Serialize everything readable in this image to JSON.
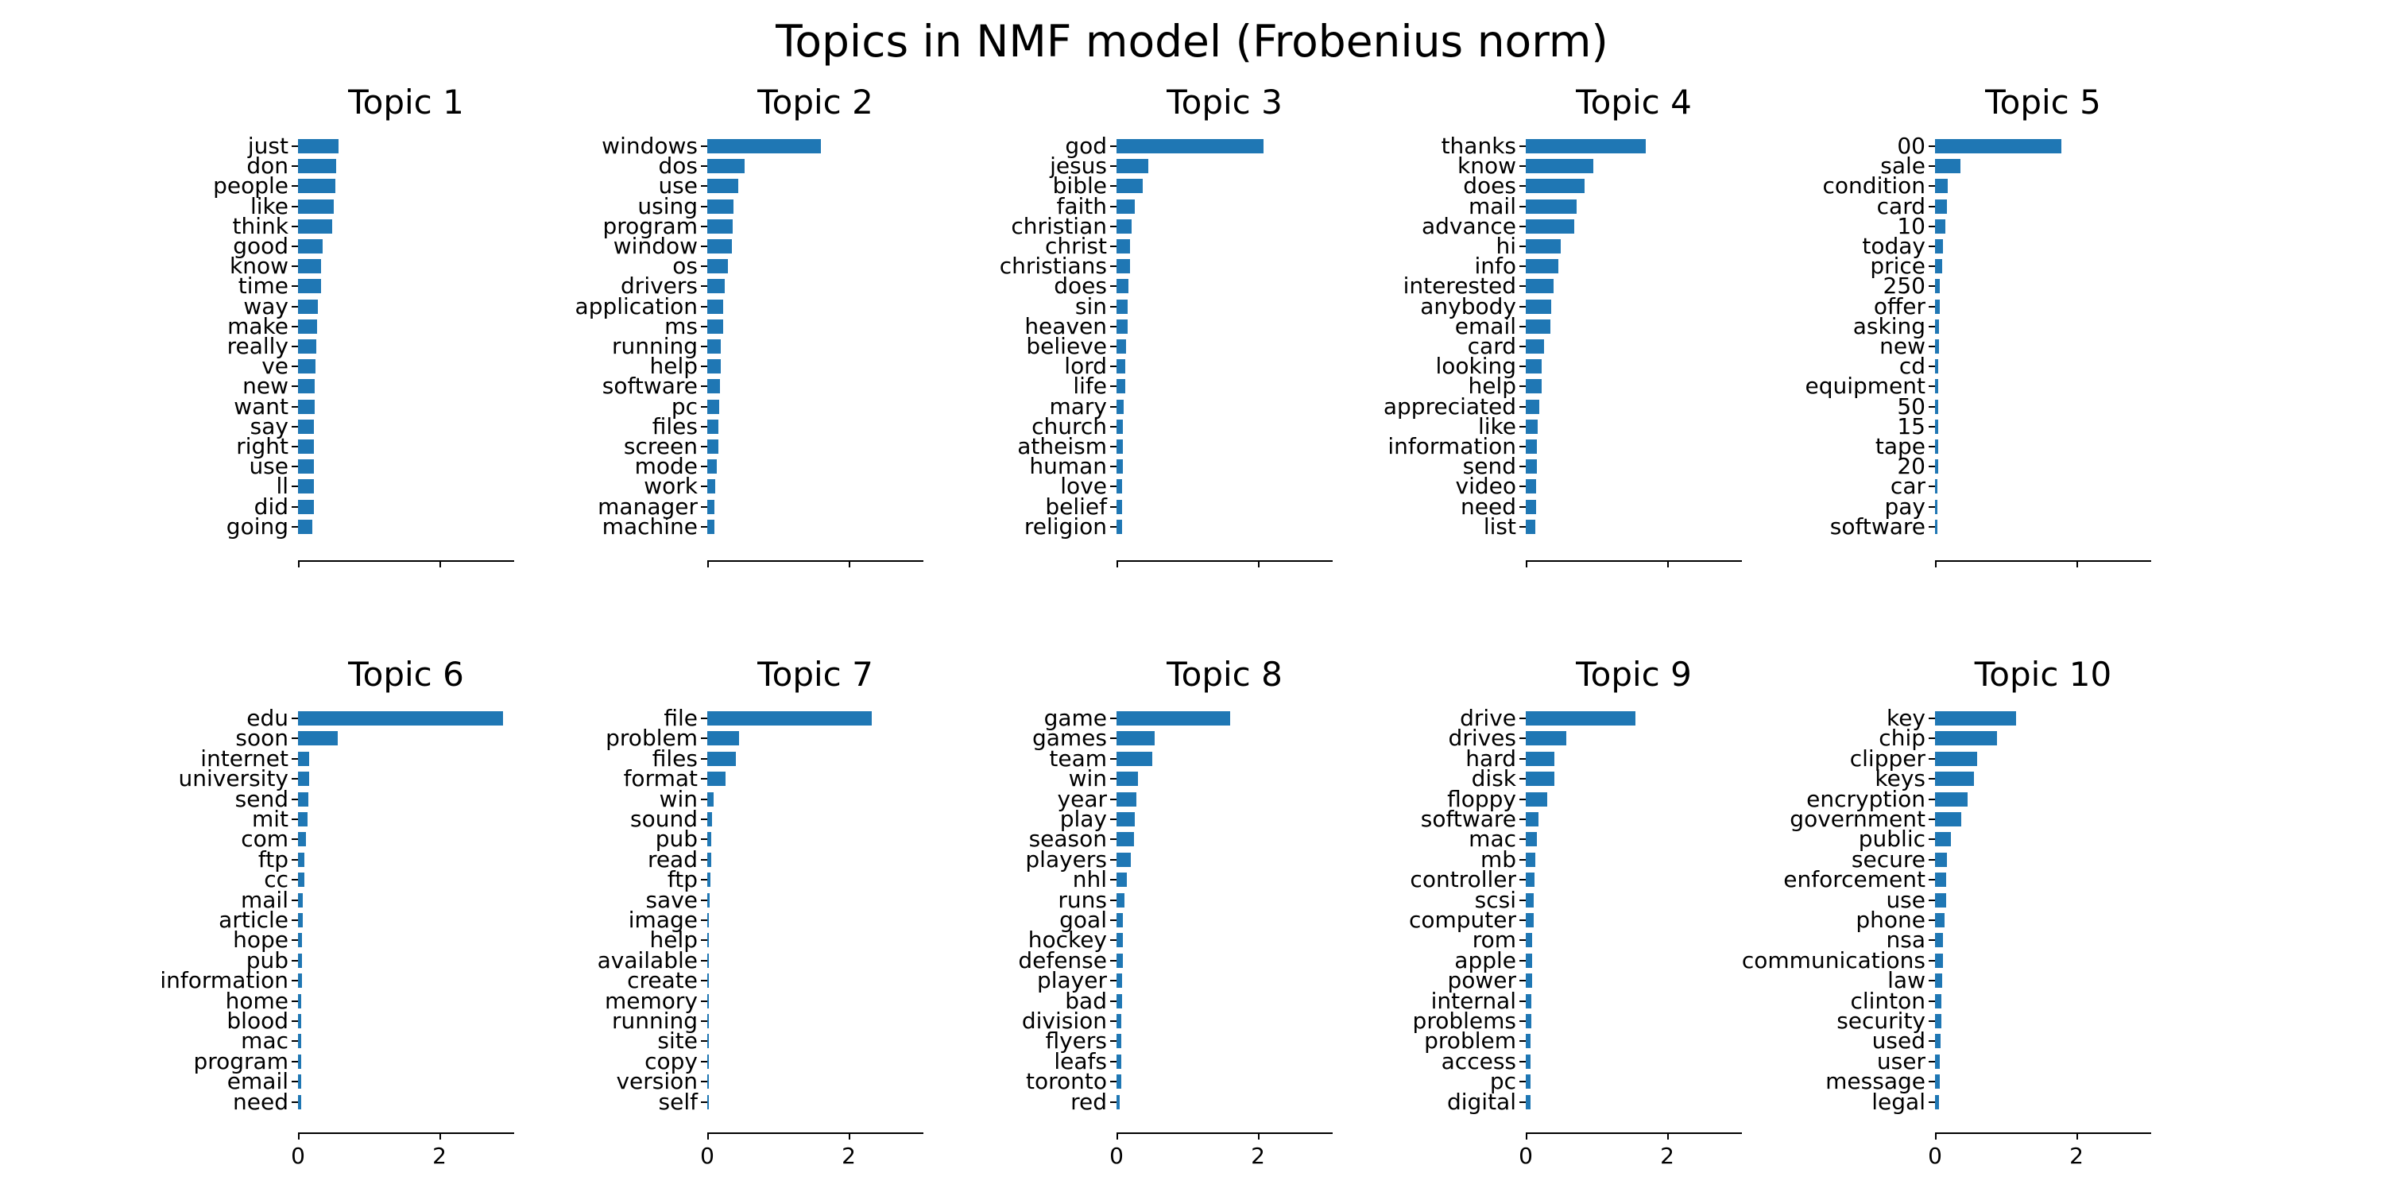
{
  "title": "Topics in NMF model (Frobenius norm)",
  "bar_color": "#1f77b4",
  "x_tick_labels": [
    "0",
    "2"
  ],
  "chart_data": [
    {
      "type": "bar",
      "orientation": "horizontal",
      "title": "Topic 1",
      "xlim": [
        0,
        3.05
      ],
      "xticks": [
        0,
        2
      ],
      "categories": [
        "just",
        "don",
        "people",
        "like",
        "think",
        "good",
        "know",
        "time",
        "way",
        "make",
        "really",
        "ve",
        "new",
        "want",
        "say",
        "right",
        "use",
        "ll",
        "did",
        "going"
      ],
      "values": [
        0.57,
        0.54,
        0.53,
        0.5,
        0.48,
        0.35,
        0.33,
        0.33,
        0.28,
        0.27,
        0.26,
        0.25,
        0.24,
        0.24,
        0.23,
        0.23,
        0.22,
        0.22,
        0.22,
        0.2
      ]
    },
    {
      "type": "bar",
      "orientation": "horizontal",
      "title": "Topic 2",
      "xlim": [
        0,
        3.05
      ],
      "xticks": [
        0,
        2
      ],
      "categories": [
        "windows",
        "dos",
        "use",
        "using",
        "program",
        "window",
        "os",
        "drivers",
        "application",
        "ms",
        "running",
        "help",
        "software",
        "pc",
        "files",
        "screen",
        "mode",
        "work",
        "manager",
        "machine"
      ],
      "values": [
        1.61,
        0.53,
        0.44,
        0.37,
        0.36,
        0.35,
        0.29,
        0.25,
        0.23,
        0.22,
        0.19,
        0.19,
        0.18,
        0.165,
        0.16,
        0.16,
        0.13,
        0.11,
        0.105,
        0.1
      ]
    },
    {
      "type": "bar",
      "orientation": "horizontal",
      "title": "Topic 3",
      "xlim": [
        0,
        3.05
      ],
      "xticks": [
        0,
        2
      ],
      "categories": [
        "god",
        "jesus",
        "bible",
        "faith",
        "christian",
        "christ",
        "christians",
        "does",
        "sin",
        "heaven",
        "believe",
        "lord",
        "life",
        "mary",
        "church",
        "atheism",
        "human",
        "love",
        "belief",
        "religion"
      ],
      "values": [
        2.08,
        0.45,
        0.37,
        0.26,
        0.21,
        0.19,
        0.19,
        0.17,
        0.16,
        0.155,
        0.13,
        0.125,
        0.125,
        0.105,
        0.09,
        0.09,
        0.085,
        0.08,
        0.08,
        0.075
      ]
    },
    {
      "type": "bar",
      "orientation": "horizontal",
      "title": "Topic 4",
      "xlim": [
        0,
        3.05
      ],
      "xticks": [
        0,
        2
      ],
      "categories": [
        "thanks",
        "know",
        "does",
        "mail",
        "advance",
        "hi",
        "info",
        "interested",
        "anybody",
        "email",
        "card",
        "looking",
        "help",
        "appreciated",
        "like",
        "information",
        "send",
        "video",
        "need",
        "list"
      ],
      "values": [
        1.7,
        0.95,
        0.83,
        0.72,
        0.69,
        0.49,
        0.46,
        0.39,
        0.36,
        0.35,
        0.26,
        0.225,
        0.22,
        0.19,
        0.17,
        0.16,
        0.16,
        0.145,
        0.145,
        0.14
      ]
    },
    {
      "type": "bar",
      "orientation": "horizontal",
      "title": "Topic 5",
      "xlim": [
        0,
        3.05
      ],
      "xticks": [
        0,
        2
      ],
      "categories": [
        "00",
        "sale",
        "condition",
        "card",
        "10",
        "today",
        "price",
        "250",
        "offer",
        "asking",
        "new",
        "cd",
        "equipment",
        "50",
        "15",
        "tape",
        "20",
        "car",
        "pay",
        "software"
      ],
      "values": [
        1.79,
        0.36,
        0.18,
        0.165,
        0.15,
        0.115,
        0.1,
        0.07,
        0.062,
        0.06,
        0.052,
        0.05,
        0.047,
        0.045,
        0.042,
        0.04,
        0.04,
        0.038,
        0.036,
        0.035
      ]
    },
    {
      "type": "bar",
      "orientation": "horizontal",
      "title": "Topic 6",
      "xlim": [
        0,
        3.05
      ],
      "xticks": [
        0,
        2
      ],
      "categories": [
        "edu",
        "soon",
        "internet",
        "university",
        "send",
        "mit",
        "com",
        "ftp",
        "cc",
        "mail",
        "article",
        "hope",
        "pub",
        "information",
        "home",
        "blood",
        "mac",
        "program",
        "email",
        "need"
      ],
      "values": [
        2.9,
        0.56,
        0.16,
        0.158,
        0.15,
        0.13,
        0.107,
        0.095,
        0.088,
        0.07,
        0.065,
        0.057,
        0.055,
        0.053,
        0.05,
        0.05,
        0.048,
        0.045,
        0.043,
        0.04
      ]
    },
    {
      "type": "bar",
      "orientation": "horizontal",
      "title": "Topic 7",
      "xlim": [
        0,
        3.05
      ],
      "xticks": [
        0,
        2
      ],
      "categories": [
        "file",
        "problem",
        "files",
        "format",
        "win",
        "sound",
        "pub",
        "read",
        "ftp",
        "save",
        "image",
        "help",
        "available",
        "create",
        "memory",
        "running",
        "site",
        "copy",
        "version",
        "self"
      ],
      "values": [
        2.33,
        0.45,
        0.41,
        0.26,
        0.088,
        0.066,
        0.057,
        0.052,
        0.042,
        0.032,
        0.028,
        0.027,
        0.023,
        0.022,
        0.021,
        0.02,
        0.02,
        0.018,
        0.015,
        0.012
      ]
    },
    {
      "type": "bar",
      "orientation": "horizontal",
      "title": "Topic 8",
      "xlim": [
        0,
        3.05
      ],
      "xticks": [
        0,
        2
      ],
      "categories": [
        "game",
        "games",
        "team",
        "win",
        "year",
        "play",
        "season",
        "players",
        "nhl",
        "runs",
        "goal",
        "hockey",
        "defense",
        "player",
        "bad",
        "division",
        "flyers",
        "leafs",
        "toronto",
        "red"
      ],
      "values": [
        1.61,
        0.54,
        0.51,
        0.3,
        0.28,
        0.26,
        0.25,
        0.2,
        0.15,
        0.11,
        0.095,
        0.093,
        0.085,
        0.083,
        0.075,
        0.072,
        0.07,
        0.068,
        0.068,
        0.045
      ]
    },
    {
      "type": "bar",
      "orientation": "horizontal",
      "title": "Topic 9",
      "xlim": [
        0,
        3.05
      ],
      "xticks": [
        0,
        2
      ],
      "categories": [
        "drive",
        "drives",
        "hard",
        "disk",
        "floppy",
        "software",
        "mac",
        "mb",
        "controller",
        "scsi",
        "computer",
        "rom",
        "apple",
        "power",
        "internal",
        "problems",
        "problem",
        "access",
        "pc",
        "digital"
      ],
      "values": [
        1.55,
        0.57,
        0.41,
        0.4,
        0.3,
        0.18,
        0.16,
        0.13,
        0.12,
        0.11,
        0.108,
        0.088,
        0.087,
        0.085,
        0.08,
        0.075,
        0.073,
        0.072,
        0.068,
        0.065
      ]
    },
    {
      "type": "bar",
      "orientation": "horizontal",
      "title": "Topic 10",
      "xlim": [
        0,
        3.05
      ],
      "xticks": [
        0,
        2
      ],
      "categories": [
        "key",
        "chip",
        "clipper",
        "keys",
        "encryption",
        "government",
        "public",
        "secure",
        "enforcement",
        "use",
        "phone",
        "nsa",
        "communications",
        "law",
        "clinton",
        "security",
        "used",
        "user",
        "message",
        "legal"
      ],
      "values": [
        1.15,
        0.88,
        0.6,
        0.55,
        0.46,
        0.37,
        0.23,
        0.165,
        0.16,
        0.158,
        0.13,
        0.115,
        0.11,
        0.1,
        0.095,
        0.087,
        0.075,
        0.068,
        0.062,
        0.057
      ]
    }
  ]
}
